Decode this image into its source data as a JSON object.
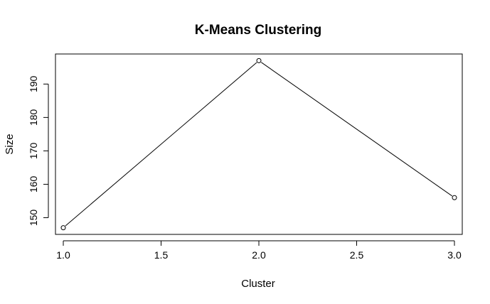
{
  "chart_data": {
    "type": "line",
    "title": "K-Means Clustering",
    "xlabel": "Cluster",
    "ylabel": "Size",
    "x": [
      1,
      2,
      3
    ],
    "values": [
      147,
      197,
      156
    ],
    "xlim": [
      0.96,
      3.04
    ],
    "ylim": [
      145,
      199
    ],
    "x_ticks": [
      1.0,
      1.5,
      2.0,
      2.5,
      3.0
    ],
    "x_tick_labels": [
      "1.0",
      "1.5",
      "2.0",
      "2.5",
      "3.0"
    ],
    "y_ticks": [
      150,
      160,
      170,
      180,
      190
    ],
    "y_tick_labels": [
      "150",
      "160",
      "170",
      "180",
      "190"
    ],
    "grid": false,
    "marker": "open-circle",
    "line_color": "#000000"
  }
}
